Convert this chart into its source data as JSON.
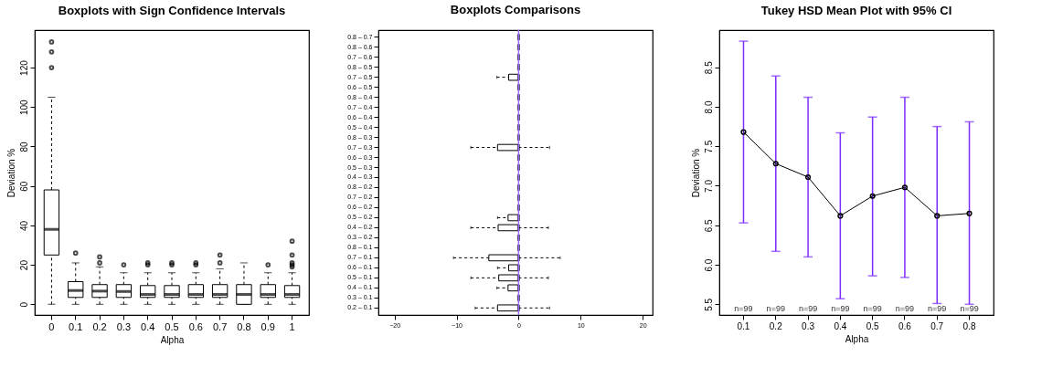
{
  "chart_data": [
    {
      "type": "box",
      "title": "Boxplots with Sign Confidence Intervals",
      "xlabel": "Alpha",
      "ylabel": "Deviation %",
      "categories": [
        "0",
        "0.1",
        "0.2",
        "0.3",
        "0.4",
        "0.5",
        "0.6",
        "0.7",
        "0.8",
        "0.9",
        "1"
      ],
      "boxes": [
        {
          "low": 0,
          "q1": 25,
          "median": 38,
          "q3": 58,
          "high": 105,
          "outliers": [
            120,
            128,
            133
          ]
        },
        {
          "low": 0,
          "q1": 3.5,
          "median": 7,
          "q3": 11.5,
          "high": 21,
          "outliers": [
            26
          ]
        },
        {
          "low": 0,
          "q1": 3.5,
          "median": 6.7,
          "q3": 10,
          "high": 19,
          "outliers": [
            21,
            24
          ]
        },
        {
          "low": 0,
          "q1": 3.5,
          "median": 6.5,
          "q3": 10,
          "high": 16,
          "outliers": [
            20
          ]
        },
        {
          "low": 0,
          "q1": 3.5,
          "median": 5,
          "q3": 9.5,
          "high": 16,
          "outliers": [
            20,
            21
          ]
        },
        {
          "low": 0,
          "q1": 3.5,
          "median": 5,
          "q3": 9.5,
          "high": 16,
          "outliers": [
            20,
            21
          ]
        },
        {
          "low": 0,
          "q1": 3.5,
          "median": 5,
          "q3": 10,
          "high": 16,
          "outliers": [
            20,
            21
          ]
        },
        {
          "low": 0,
          "q1": 3.5,
          "median": 5,
          "q3": 10,
          "high": 18,
          "outliers": [
            21,
            25
          ]
        },
        {
          "low": 0,
          "q1": 0,
          "median": 5,
          "q3": 10,
          "high": 21
        },
        {
          "low": 0,
          "q1": 3.5,
          "median": 5,
          "q3": 10,
          "high": 16,
          "outliers": [
            20
          ]
        },
        {
          "low": 0,
          "q1": 3.5,
          "median": 5,
          "q3": 9.5,
          "high": 16,
          "outliers": [
            19,
            20,
            21,
            25,
            32
          ]
        }
      ],
      "ylim": [
        -5.4,
        139
      ],
      "yticks": [
        0,
        20,
        40,
        60,
        80,
        100,
        120
      ]
    },
    {
      "type": "box",
      "title": "Boxplots Comparisons",
      "orientation": "horizontal",
      "categories": [
        "0.8 – 0.7",
        "0.8 – 0.6",
        "0.7 – 0.6",
        "0.8 – 0.5",
        "0.7 – 0.5",
        "0.6 – 0.5",
        "0.8 – 0.4",
        "0.7 – 0.4",
        "0.6 – 0.4",
        "0.5 – 0.4",
        "0.8 – 0.3",
        "0.7 – 0.3",
        "0.6 – 0.3",
        "0.5 – 0.3",
        "0.4 – 0.3",
        "0.8 – 0.2",
        "0.7 – 0.2",
        "0.6 – 0.2",
        "0.5 – 0.2",
        "0.4 – 0.2",
        "0.3 – 0.2",
        "0.8 – 0.1",
        "0.7 – 0.1",
        "0.6 – 0.1",
        "0.5 – 0.1",
        "0.4 – 0.1",
        "0.3 – 0.1",
        "0.2 – 0.1"
      ],
      "boxes": [
        {
          "low": 0,
          "q1": 0,
          "median": 0,
          "q3": 0,
          "high": 0
        },
        {
          "low": 0,
          "q1": 0,
          "median": 0,
          "q3": 0,
          "high": 0
        },
        {
          "low": 0,
          "q1": 0,
          "median": 0,
          "q3": 0,
          "high": 0
        },
        {
          "low": 0,
          "q1": 0,
          "median": 0,
          "q3": 0,
          "high": 0
        },
        {
          "low": -3.5,
          "q1": -1.6,
          "median": 0,
          "q3": 0,
          "high": 0
        },
        {
          "low": 0,
          "q1": 0,
          "median": 0,
          "q3": 0,
          "high": 0
        },
        {
          "low": 0,
          "q1": 0,
          "median": 0,
          "q3": 0,
          "high": 0
        },
        {
          "low": 0,
          "q1": 0,
          "median": 0,
          "q3": 0,
          "high": 0
        },
        {
          "low": 0,
          "q1": 0,
          "median": 0,
          "q3": 0,
          "high": 0
        },
        {
          "low": 0,
          "q1": 0,
          "median": 0,
          "q3": 0,
          "high": 0
        },
        {
          "low": 0,
          "q1": 0,
          "median": 0,
          "q3": 0,
          "high": 0
        },
        {
          "low": -7.7,
          "q1": -3.4,
          "median": 0,
          "q3": 0,
          "high": 5
        },
        {
          "low": 0,
          "q1": 0,
          "median": 0,
          "q3": 0,
          "high": 0
        },
        {
          "low": 0,
          "q1": 0,
          "median": 0,
          "q3": 0,
          "high": 0
        },
        {
          "low": 0,
          "q1": 0,
          "median": 0,
          "q3": 0,
          "high": 0
        },
        {
          "low": 0,
          "q1": 0,
          "median": 0,
          "q3": 0,
          "high": 0
        },
        {
          "low": 0,
          "q1": 0,
          "median": 0,
          "q3": 0,
          "high": 0
        },
        {
          "low": 0,
          "q1": 0,
          "median": 0,
          "q3": 0,
          "high": 0
        },
        {
          "low": -3.4,
          "q1": -1.7,
          "median": 0,
          "q3": 0,
          "high": 0
        },
        {
          "low": -7.7,
          "q1": -3.3,
          "median": 0,
          "q3": 0,
          "high": 4.8
        },
        {
          "low": 0,
          "q1": 0,
          "median": 0,
          "q3": 0,
          "high": 0
        },
        {
          "low": 0,
          "q1": 0,
          "median": 0,
          "q3": 0,
          "high": 0
        },
        {
          "low": -10.5,
          "q1": -4.8,
          "median": 0,
          "q3": 0,
          "high": 6.7
        },
        {
          "low": -3.4,
          "q1": -1.6,
          "median": 0,
          "q3": 0,
          "high": 0
        },
        {
          "low": -7.7,
          "q1": -3.2,
          "median": 0,
          "q3": 0,
          "high": 4.8
        },
        {
          "low": -3.5,
          "q1": -1.7,
          "median": 0,
          "q3": 0,
          "high": 0
        },
        {
          "low": 0,
          "q1": 0,
          "median": 0,
          "q3": 0,
          "high": 0
        },
        {
          "low": -7,
          "q1": -3.4,
          "median": 0,
          "q3": 0,
          "high": 5
        }
      ],
      "xlim": [
        -22.6,
        21.6
      ],
      "xticks": [
        -20,
        -10,
        0,
        10,
        20
      ],
      "ref_lines": [
        {
          "axis": "x",
          "value": 0,
          "color": "#9966ff"
        }
      ]
    },
    {
      "type": "line",
      "title": "Tukey HSD Mean Plot with 95% CI",
      "xlabel": "Alpha",
      "ylabel": "Deviation %",
      "categories": [
        "0.1",
        "0.2",
        "0.3",
        "0.4",
        "0.5",
        "0.6",
        "0.7",
        "0.8"
      ],
      "series": [
        {
          "color": "#000000",
          "values": [
            7.68,
            7.28,
            7.11,
            6.62,
            6.87,
            6.98,
            6.62,
            6.65
          ],
          "errors": [
            [
              6.53,
              8.83
            ],
            [
              6.17,
              8.39
            ],
            [
              6.1,
              8.12
            ],
            [
              5.57,
              7.67
            ],
            [
              5.86,
              7.87
            ],
            [
              5.84,
              8.12
            ],
            [
              5.51,
              7.75
            ],
            [
              5.5,
              7.81
            ]
          ]
        }
      ],
      "marker": "circle",
      "ylim": [
        5.365,
        8.97
      ],
      "yticks": [
        5.5,
        {
          "value": 6,
          "label": "6.0"
        },
        6.5,
        {
          "value": 7,
          "label": "7.0"
        },
        7.5,
        {
          "value": 8,
          "label": "8.0"
        },
        8.5
      ],
      "annotations": [
        "n=99",
        "n=99",
        "n=99",
        "n=99",
        "n=99",
        "n=99",
        "n=99",
        "n=99"
      ]
    }
  ]
}
